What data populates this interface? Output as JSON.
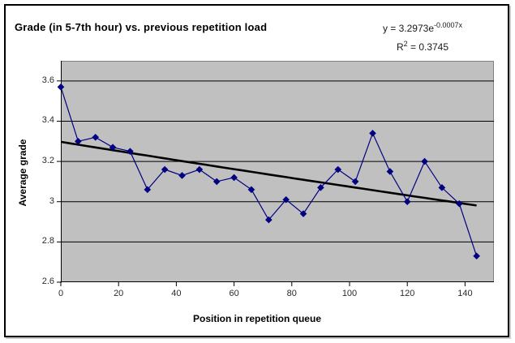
{
  "chart": {
    "title": "Grade (in 5-7th hour) vs. previous repetition load",
    "equation": {
      "prefix": "y = 3.2973e",
      "exponent": "-0.0007x"
    },
    "r_squared": {
      "base": "R",
      "sup": "2",
      "value": " = 0.3745"
    }
  },
  "chart_data": {
    "type": "line",
    "title": "Grade (in 5-7th hour) vs. previous repetition load",
    "xlabel": "Position in repetition queue",
    "ylabel": "Average grade",
    "marker": "diamond",
    "x": [
      0,
      6,
      12,
      18,
      24,
      30,
      36,
      42,
      48,
      54,
      60,
      66,
      72,
      78,
      84,
      90,
      96,
      102,
      108,
      114,
      120,
      126,
      132,
      138,
      144
    ],
    "y": [
      3.57,
      3.3,
      3.32,
      3.27,
      3.25,
      3.06,
      3.16,
      3.13,
      3.16,
      3.1,
      3.12,
      3.06,
      2.91,
      3.01,
      2.94,
      3.07,
      3.16,
      3.1,
      3.34,
      3.15,
      3.0,
      3.2,
      3.07,
      2.99,
      2.73
    ],
    "xlim": [
      0,
      150
    ],
    "ylim": [
      2.6,
      3.7
    ],
    "x_ticks": [
      {
        "v": 0,
        "label": "0"
      },
      {
        "v": 20,
        "label": "20"
      },
      {
        "v": 40,
        "label": "40"
      },
      {
        "v": 60,
        "label": "60"
      },
      {
        "v": 80,
        "label": "80"
      },
      {
        "v": 100,
        "label": "100"
      },
      {
        "v": 120,
        "label": "120"
      },
      {
        "v": 140,
        "label": "140"
      }
    ],
    "y_ticks": [
      {
        "v": 2.6,
        "label": "2.6"
      },
      {
        "v": 2.8,
        "label": "2.8"
      },
      {
        "v": 3.0,
        "label": "3"
      },
      {
        "v": 3.2,
        "label": "3.2"
      },
      {
        "v": 3.4,
        "label": "3.4"
      },
      {
        "v": 3.6,
        "label": "3.6"
      }
    ],
    "grid": "horizontal",
    "legend": "none",
    "trendline": {
      "type": "exponential",
      "a": 3.2973,
      "b": -0.0007,
      "x_start": 0,
      "x_end": 144,
      "equation": "y = 3.2973e^(-0.0007x)",
      "r2": 0.3745
    },
    "colors": {
      "series": "#000080",
      "trendline": "#000000",
      "plot_bg": "#c0c0c0",
      "plot_border": "#808080",
      "gridline": "#000000",
      "axis": "#000000",
      "text": "#000000"
    }
  }
}
